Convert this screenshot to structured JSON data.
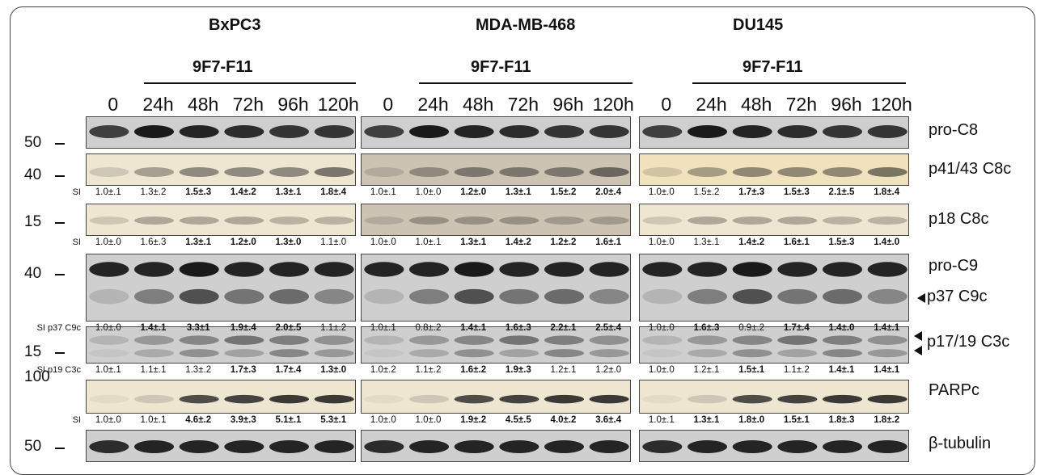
{
  "cells": [
    {
      "name": "BxPC3",
      "treatment": "9F7-F11"
    },
    {
      "name": "MDA-MB-468",
      "treatment": "9F7-F11"
    },
    {
      "name": "DU145",
      "treatment": "9F7-F11"
    }
  ],
  "timepoints": [
    "0",
    "24h",
    "48h",
    "72h",
    "96h",
    "120h"
  ],
  "markers": [
    "50",
    "40",
    "15",
    "40",
    "15",
    "100",
    "50"
  ],
  "proteins": [
    "pro-C8",
    "p41/43 C8c",
    "p18 C8c",
    "pro-C9",
    "p37 C9c",
    "p17/19 C3c",
    "PARPc",
    "β-tubulin"
  ],
  "si_labels": [
    "SI",
    "SI",
    "SI p37 C9c",
    "SI p19 C3c",
    "SI"
  ],
  "quant": [
    {
      "label": "SI",
      "values": [
        [
          "1.0±.1",
          "1.3±.2",
          "1.5±.3",
          "1.4±.2",
          "1.3±.1",
          "1.8±.4"
        ],
        [
          "1.0±.1",
          "1.0±.0",
          "1.2±.0",
          "1.3±.1",
          "1.5±.2",
          "2.0±.4"
        ],
        [
          "1.0±.0",
          "1.5±.2",
          "1.7±.3",
          "1.5±.3",
          "2.1±.5",
          "1.8±.4"
        ]
      ]
    },
    {
      "label": "SI",
      "values": [
        [
          "1.0±.0",
          "1.6±.3",
          "1.3±.1",
          "1.2±.0",
          "1.3±.0",
          "1.1±.0"
        ],
        [
          "1.0±.0",
          "1.0±.1",
          "1.3±.1",
          "1.4±.2",
          "1.2±.2",
          "1.6±.1"
        ],
        [
          "1.0±.0",
          "1.3±.1",
          "1.4±.2",
          "1.6±.1",
          "1.5±.3",
          "1.4±.0"
        ]
      ]
    },
    {
      "label": "SI p37 C9c",
      "values": [
        [
          "1.0±.0",
          "1.4±.1",
          "3.3±1",
          "1.9±.4",
          "2.0±.5",
          "1.1±.2"
        ],
        [
          "1.0±.1",
          "0.8±.2",
          "1.4±.1",
          "1.6±.3",
          "2.2±.1",
          "2.5±.4"
        ],
        [
          "1.0±.0",
          "1.6±.3",
          "0.9±.2",
          "1.7±.4",
          "1.4±.0",
          "1.4±.1"
        ]
      ]
    },
    {
      "label": "SI p19 C3c",
      "values": [
        [
          "1.0±.1",
          "1.1±.1",
          "1.3±.2",
          "1.7±.3",
          "1.7±.4",
          "1.3±.0"
        ],
        [
          "1.0±.2",
          "1.1±.2",
          "1.6±.2",
          "1.9±.3",
          "1.2±.1",
          "1.2±.0"
        ],
        [
          "1.0±.0",
          "1.2±.1",
          "1.5±.1",
          "1.1±.2",
          "1.4±.1",
          "1.4±.1"
        ]
      ]
    },
    {
      "label": "SI",
      "values": [
        [
          "1.0±.0",
          "1.0±.1",
          "4.6±.2",
          "3.9±.3",
          "5.1±.1",
          "5.3±.1"
        ],
        [
          "1.0±.0",
          "1.0±.0",
          "1.9±.2",
          "4.5±.5",
          "4.0±.2",
          "3.6±.4"
        ],
        [
          "1.0±.1",
          "1.3±.1",
          "1.8±.0",
          "1.5±.1",
          "1.8±.3",
          "1.8±.2"
        ]
      ]
    }
  ],
  "bold_flags": [
    [
      [
        0,
        0,
        1,
        1,
        1,
        1
      ],
      [
        0,
        0,
        1,
        1,
        1,
        1
      ],
      [
        0,
        0,
        1,
        1,
        1,
        1
      ]
    ],
    [
      [
        0,
        0,
        1,
        1,
        1,
        0
      ],
      [
        0,
        0,
        1,
        1,
        1,
        1
      ],
      [
        0,
        0,
        1,
        1,
        1,
        1
      ]
    ],
    [
      [
        0,
        1,
        1,
        1,
        1,
        0
      ],
      [
        0,
        0,
        1,
        1,
        1,
        1
      ],
      [
        0,
        1,
        0,
        1,
        1,
        1
      ]
    ],
    [
      [
        0,
        0,
        0,
        1,
        1,
        1
      ],
      [
        0,
        0,
        1,
        1,
        0,
        0
      ],
      [
        0,
        0,
        1,
        0,
        1,
        1
      ]
    ],
    [
      [
        0,
        0,
        1,
        1,
        1,
        1
      ],
      [
        0,
        0,
        1,
        1,
        1,
        1
      ],
      [
        0,
        1,
        1,
        1,
        1,
        1
      ]
    ]
  ],
  "colors": {
    "ink": "#111111",
    "film_gray": "#cfcfcf",
    "film_cream": "#efe6d2",
    "band": "#1a1a1a"
  }
}
